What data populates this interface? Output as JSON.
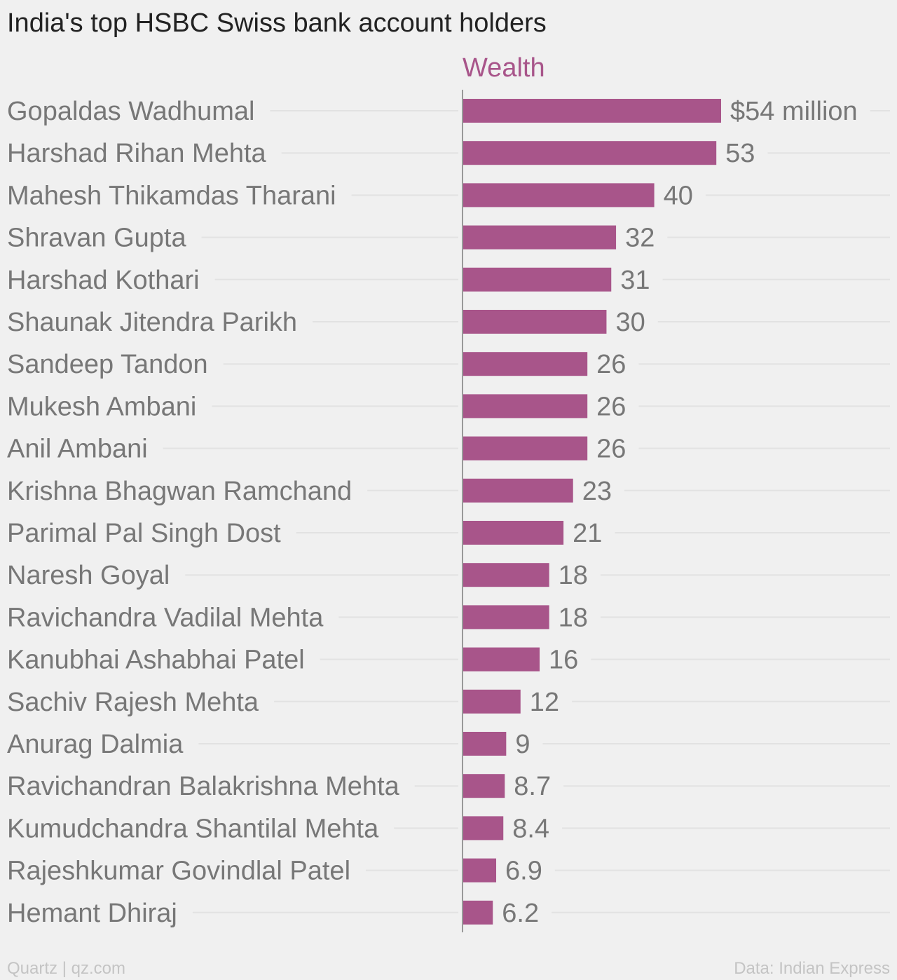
{
  "title": "India's top HSBC Swiss bank account holders",
  "footer": {
    "source_left": "Quartz | qz.com",
    "source_right": "Data: Indian Express"
  },
  "colors": {
    "bar": "#a8558a",
    "label": "#777777",
    "grid": "#e2e2e2",
    "axis": "#999999",
    "title": "#222222"
  },
  "chart_data": {
    "type": "bar",
    "orientation": "horizontal",
    "series": [
      {
        "name": "Wealth"
      }
    ],
    "categories": [
      "Gopaldas Wadhumal",
      "Harshad Rihan Mehta",
      "Mahesh Thikamdas Tharani",
      "Shravan Gupta",
      "Harshad Kothari",
      "Shaunak Jitendra Parikh",
      "Sandeep Tandon",
      "Mukesh Ambani",
      "Anil Ambani",
      "Krishna Bhagwan Ramchand",
      "Parimal Pal Singh Dost",
      "Naresh Goyal",
      "Ravichandra Vadilal Mehta",
      "Kanubhai Ashabhai Patel",
      "Sachiv Rajesh Mehta",
      "Anurag Dalmia",
      "Ravichandran Balakrishna Mehta",
      "Kumudchandra Shantilal Mehta",
      "Rajeshkumar Govindlal Patel",
      "Hemant Dhiraj"
    ],
    "values": [
      54,
      53,
      40,
      32,
      31,
      30,
      26,
      26,
      26,
      23,
      21,
      18,
      18,
      16,
      12,
      9,
      8.7,
      8.4,
      6.9,
      6.2
    ],
    "value_labels": [
      "$54 million",
      "53",
      "40",
      "32",
      "31",
      "30",
      "26",
      "26",
      "26",
      "23",
      "21",
      "18",
      "18",
      "16",
      "12",
      "9",
      "8.7",
      "8.4",
      "6.9",
      "6.2"
    ],
    "unit": "million USD"
  }
}
